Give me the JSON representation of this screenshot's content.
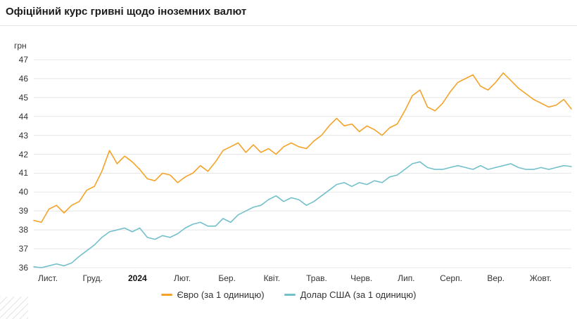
{
  "page": {
    "title": "Офіційний курс гривні щодо іноземних валют",
    "unit_label": "грн"
  },
  "chart_data": {
    "type": "line",
    "title": "Офіційний курс гривні щодо іноземних валют",
    "ylabel": "грн",
    "ylim": [
      36,
      47
    ],
    "y_ticks": [
      36,
      37,
      38,
      39,
      40,
      41,
      42,
      43,
      44,
      45,
      46,
      47
    ],
    "grid": true,
    "legend_position": "bottom",
    "x_ticks": [
      {
        "label": "Лист.",
        "bold": false
      },
      {
        "label": "Груд.",
        "bold": false
      },
      {
        "label": "2024",
        "bold": true
      },
      {
        "label": "Лют.",
        "bold": false
      },
      {
        "label": "Бер.",
        "bold": false
      },
      {
        "label": "Квіт.",
        "bold": false
      },
      {
        "label": "Трав.",
        "bold": false
      },
      {
        "label": "Черв.",
        "bold": false
      },
      {
        "label": "Лип.",
        "bold": false
      },
      {
        "label": "Серп.",
        "bold": false
      },
      {
        "label": "Вер.",
        "bold": false
      },
      {
        "label": "Жовт.",
        "bold": false
      }
    ],
    "series": [
      {
        "name": "Євро (за 1 одиницю)",
        "color": "#f4a328",
        "values": [
          38.5,
          38.4,
          39.1,
          39.3,
          38.9,
          39.3,
          39.5,
          40.1,
          40.3,
          41.1,
          42.2,
          41.5,
          41.9,
          41.6,
          41.2,
          40.7,
          40.6,
          41.0,
          40.9,
          40.5,
          40.8,
          41.0,
          41.4,
          41.1,
          41.6,
          42.2,
          42.4,
          42.6,
          42.1,
          42.5,
          42.1,
          42.3,
          42.0,
          42.4,
          42.6,
          42.4,
          42.3,
          42.7,
          43.0,
          43.5,
          43.9,
          43.5,
          43.6,
          43.2,
          43.5,
          43.3,
          43.0,
          43.4,
          43.6,
          44.3,
          45.1,
          45.4,
          44.5,
          44.3,
          44.7,
          45.3,
          45.8,
          46.0,
          46.2,
          45.6,
          45.4,
          45.8,
          46.3,
          45.9,
          45.5,
          45.2,
          44.9,
          44.7,
          44.5,
          44.6,
          44.9,
          44.4
        ]
      },
      {
        "name": "Долар США (за 1 одиницю)",
        "color": "#73c0cb",
        "values": [
          36.05,
          36.0,
          36.1,
          36.2,
          36.1,
          36.25,
          36.6,
          36.9,
          37.2,
          37.6,
          37.9,
          38.0,
          38.1,
          37.9,
          38.1,
          37.6,
          37.5,
          37.7,
          37.6,
          37.8,
          38.1,
          38.3,
          38.4,
          38.2,
          38.2,
          38.6,
          38.4,
          38.8,
          39.0,
          39.2,
          39.3,
          39.6,
          39.8,
          39.5,
          39.7,
          39.6,
          39.3,
          39.5,
          39.8,
          40.1,
          40.4,
          40.5,
          40.3,
          40.5,
          40.4,
          40.6,
          40.5,
          40.8,
          40.9,
          41.2,
          41.5,
          41.6,
          41.3,
          41.2,
          41.2,
          41.3,
          41.4,
          41.3,
          41.2,
          41.4,
          41.2,
          41.3,
          41.4,
          41.5,
          41.3,
          41.2,
          41.2,
          41.3,
          41.2,
          41.3,
          41.4,
          41.35
        ]
      }
    ]
  }
}
